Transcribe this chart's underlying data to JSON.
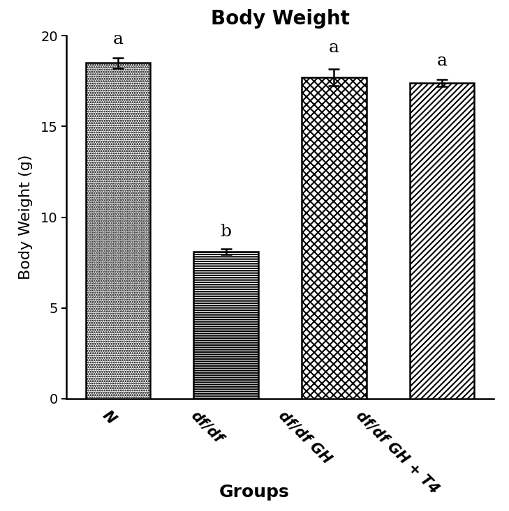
{
  "title": "Body Weight",
  "xlabel": "Groups",
  "ylabel": "Body Weight (g)",
  "categories": [
    "N",
    "df/df",
    "df/df GH",
    "df/df GH + T4"
  ],
  "values": [
    18.5,
    8.1,
    17.7,
    17.4
  ],
  "errors": [
    0.3,
    0.15,
    0.45,
    0.2
  ],
  "superscripts": [
    "a",
    "b",
    "a",
    "a"
  ],
  "superscript_offsets": [
    0.55,
    0.5,
    0.75,
    0.55
  ],
  "ylim": [
    0,
    20
  ],
  "yticks": [
    0,
    5,
    10,
    15,
    20
  ],
  "bar_width": 0.6,
  "hatch_patterns": [
    ".....",
    "-----",
    "xxx",
    "////"
  ],
  "edgecolor": "black",
  "title_fontsize": 20,
  "ylabel_fontsize": 16,
  "tick_fontsize": 14,
  "superscript_fontsize": 18,
  "xlabel_fontsize": 18,
  "xticklabel_fontsize": 15
}
